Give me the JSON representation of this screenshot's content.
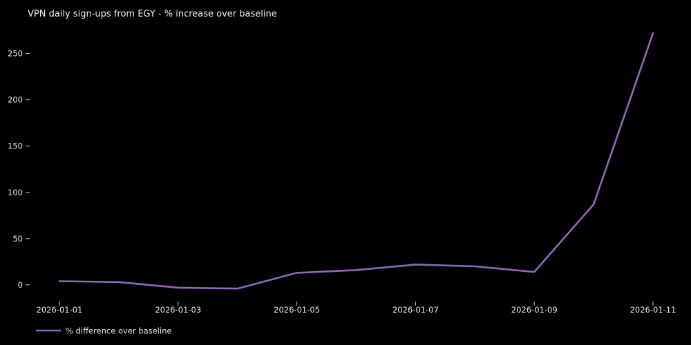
{
  "chart_data": {
    "type": "line",
    "title": "VPN daily sign-ups from EGY - % increase over baseline",
    "xlabel": "",
    "ylabel": "",
    "x": [
      "2026-01-01",
      "2026-01-02",
      "2026-01-03",
      "2026-01-04",
      "2026-01-05",
      "2026-01-06",
      "2026-01-07",
      "2026-01-08",
      "2026-01-09",
      "2026-01-10",
      "2026-01-11"
    ],
    "series": [
      {
        "name": "% difference over baseline",
        "color": "#9467bd",
        "values": [
          4,
          3,
          -3,
          -4,
          13,
          16,
          22,
          20,
          14,
          87,
          272
        ]
      }
    ],
    "xtick_labels": [
      "2026-01-01",
      "2026-01-03",
      "2026-01-05",
      "2026-01-07",
      "2026-01-09",
      "2026-01-11"
    ],
    "yticks": [
      0,
      50,
      100,
      150,
      200,
      250
    ],
    "ylim": [
      -18,
      284
    ],
    "grid": false,
    "legend_position": "lower-left",
    "colors": {
      "background": "#000000",
      "text": "#f0f0f0",
      "tick_mark": "#cccccc"
    }
  }
}
